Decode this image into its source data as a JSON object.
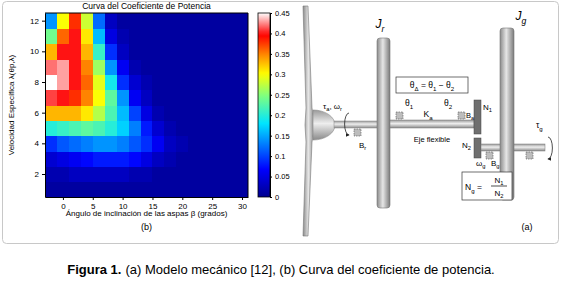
{
  "chart_data": {
    "type": "heatmap",
    "title": "Curva del Coeficiente de Potencia",
    "x_label": "Ángulo de inclinación de las aspas β (grados)",
    "y_label": "Velocidad Específica λ(θp,λ)",
    "annotations": [
      "(b)"
    ],
    "x": [
      -2,
      0,
      2,
      4,
      6,
      8,
      10,
      12,
      14,
      16,
      18,
      20,
      22,
      24,
      26,
      28,
      30
    ],
    "y": [
      1,
      2,
      3,
      4,
      5,
      6,
      7,
      8,
      9,
      10,
      11,
      12
    ],
    "values": [
      [
        0.01,
        0.01,
        0.01,
        0.01,
        0.01,
        0.01,
        0.01,
        0.01,
        0.01,
        0.01,
        0.01,
        0.01,
        0.01,
        0.01,
        0.01,
        0.01,
        0.01
      ],
      [
        0.02,
        0.02,
        0.03,
        0.03,
        0.03,
        0.03,
        0.03,
        0.02,
        0.02,
        0.01,
        0.01,
        0.01,
        0.01,
        0.01,
        0.01,
        0.01,
        0.01
      ],
      [
        0.04,
        0.05,
        0.06,
        0.07,
        0.08,
        0.08,
        0.08,
        0.07,
        0.05,
        0.03,
        0.02,
        0.01,
        0.01,
        0.01,
        0.01,
        0.01,
        0.01
      ],
      [
        0.09,
        0.11,
        0.12,
        0.13,
        0.14,
        0.14,
        0.13,
        0.11,
        0.09,
        0.06,
        0.03,
        0.02,
        0.01,
        0.01,
        0.01,
        0.01,
        0.01
      ],
      [
        0.2,
        0.21,
        0.22,
        0.23,
        0.22,
        0.2,
        0.17,
        0.13,
        0.08,
        0.04,
        0.02,
        0.01,
        0.01,
        0.01,
        0.01,
        0.01,
        0.01
      ],
      [
        0.33,
        0.33,
        0.33,
        0.31,
        0.27,
        0.22,
        0.16,
        0.1,
        0.05,
        0.02,
        0.01,
        0.01,
        0.01,
        0.01,
        0.01,
        0.01,
        0.01
      ],
      [
        0.41,
        0.4,
        0.38,
        0.35,
        0.3,
        0.23,
        0.14,
        0.06,
        0.03,
        0.01,
        0.01,
        0.01,
        0.01,
        0.01,
        0.01,
        0.01,
        0.01
      ],
      [
        0.45,
        0.43,
        0.4,
        0.36,
        0.29,
        0.19,
        0.09,
        0.04,
        0.02,
        0.01,
        0.01,
        0.01,
        0.01,
        0.01,
        0.01,
        0.01,
        0.01
      ],
      [
        0.42,
        0.43,
        0.4,
        0.35,
        0.26,
        0.14,
        0.06,
        0.02,
        0.01,
        0.01,
        0.01,
        0.01,
        0.01,
        0.01,
        0.01,
        0.01,
        0.01
      ],
      [
        0.33,
        0.4,
        0.4,
        0.33,
        0.21,
        0.09,
        0.03,
        0.01,
        0.01,
        0.01,
        0.01,
        0.01,
        0.01,
        0.01,
        0.01,
        0.01,
        0.01
      ],
      [
        0.24,
        0.36,
        0.4,
        0.31,
        0.16,
        0.05,
        0.02,
        0.01,
        0.01,
        0.01,
        0.01,
        0.01,
        0.01,
        0.01,
        0.01,
        0.01,
        0.01
      ],
      [
        0.14,
        0.3,
        0.38,
        0.28,
        0.12,
        0.03,
        0.01,
        0.01,
        0.01,
        0.01,
        0.01,
        0.01,
        0.01,
        0.01,
        0.01,
        0.01,
        0.01
      ]
    ],
    "xlim": [
      -3,
      31
    ],
    "xticks": [
      0,
      5,
      10,
      15,
      20,
      25,
      30
    ],
    "ylim": [
      0.5,
      12.5
    ],
    "yticks": [
      2,
      4,
      6,
      8,
      10,
      12
    ],
    "colorbar": {
      "range": [
        0,
        0.45
      ],
      "ticks": [
        0,
        0.05,
        0.1,
        0.15,
        0.2,
        0.25,
        0.3,
        0.35,
        0.4,
        0.45
      ]
    }
  },
  "diagram": {
    "labels": [
      {
        "parts": [
          {
            "text": "J"
          },
          {
            "text": "r",
            "sub": true
          }
        ]
      },
      {
        "parts": [
          {
            "text": "J"
          },
          {
            "text": "g",
            "sub": true
          }
        ]
      },
      {
        "parts": [
          {
            "text": "τ"
          },
          {
            "text": "a",
            "sub": true
          },
          {
            "text": ", ω"
          },
          {
            "text": "r",
            "sub": true
          }
        ]
      },
      {
        "parts": [
          {
            "text": "θ"
          },
          {
            "text": "1",
            "sub": true
          }
        ]
      },
      {
        "parts": [
          {
            "text": "K"
          },
          {
            "text": "a",
            "sub": true
          }
        ]
      },
      {
        "parts": [
          {
            "text": "θ"
          },
          {
            "text": "2",
            "sub": true
          }
        ]
      },
      {
        "parts": [
          {
            "text": "B"
          },
          {
            "text": "a",
            "sub": true
          }
        ]
      },
      {
        "parts": [
          {
            "text": "B"
          },
          {
            "text": "r",
            "sub": true
          }
        ]
      },
      {
        "parts": [
          {
            "text": "Eje flexible"
          }
        ]
      },
      {
        "parts": [
          {
            "text": "N"
          },
          {
            "text": "1",
            "sub": true
          }
        ]
      },
      {
        "parts": [
          {
            "text": "N"
          },
          {
            "text": "2",
            "sub": true
          }
        ]
      },
      {
        "parts": [
          {
            "text": "ω"
          },
          {
            "text": "g",
            "sub": true
          }
        ]
      },
      {
        "parts": [
          {
            "text": "B"
          },
          {
            "text": "g",
            "sub": true
          }
        ]
      },
      {
        "parts": [
          {
            "text": "τ"
          },
          {
            "text": "g",
            "sub": true
          }
        ]
      },
      {
        "parts": [
          {
            "text": "(a)"
          }
        ]
      }
    ],
    "boxes": [
      {
        "parts": [
          {
            "text": "θ"
          },
          {
            "text": "Δ",
            "sub": true
          },
          {
            "text": " = θ"
          },
          {
            "text": "1",
            "sub": true
          },
          {
            "text": " − θ"
          },
          {
            "text": "2",
            "sub": true
          }
        ]
      },
      {
        "lhs": [
          {
            "text": "N"
          },
          {
            "text": "g",
            "sub": true
          },
          {
            "text": " ="
          }
        ],
        "numerator": [
          {
            "text": "N"
          },
          {
            "text": "1",
            "sub": true
          }
        ],
        "denominator": [
          {
            "text": "N"
          },
          {
            "text": "2",
            "sub": true
          }
        ]
      }
    ]
  },
  "caption": {
    "label": "Figura 1.",
    "text": "(a) Modelo mecánico [12], (b) Curva del coeficiente de potencia."
  }
}
